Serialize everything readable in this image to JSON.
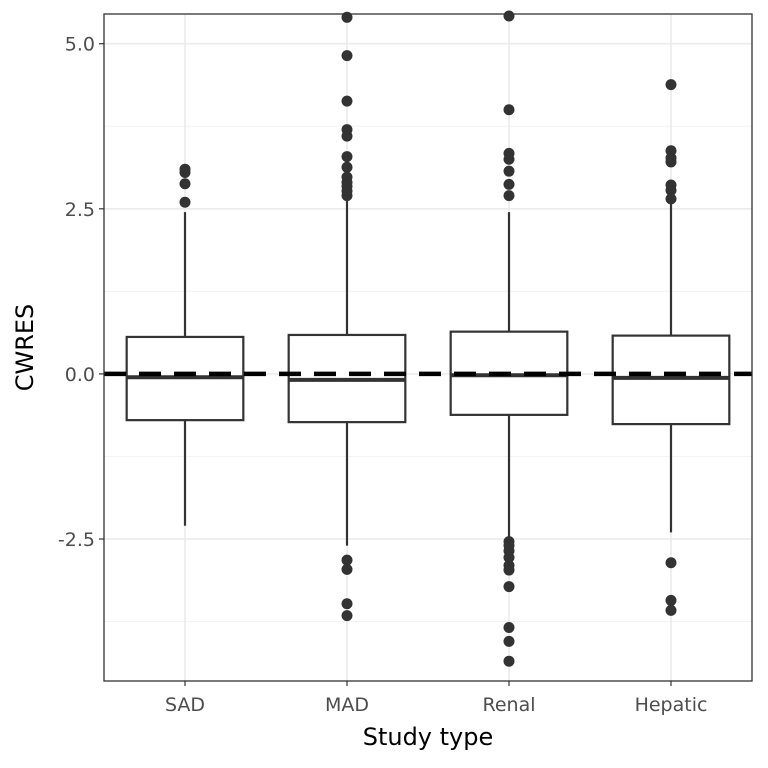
{
  "chart_data": {
    "type": "box",
    "xlabel": "Study type",
    "ylabel": "CWRES",
    "ylim": [
      -4.65,
      5.45
    ],
    "yticks": [
      -2.5,
      0.0,
      2.5,
      5.0
    ],
    "ytick_labels": [
      "-2.5",
      "0.0",
      "2.5",
      "5.0"
    ],
    "grid": true,
    "reference_line": {
      "y": 0,
      "style": "dashed"
    },
    "categories": [
      "SAD",
      "MAD",
      "Renal",
      "Hepatic"
    ],
    "boxes": [
      {
        "category": "SAD",
        "q1": -0.7,
        "median": -0.05,
        "q3": 0.56,
        "whisker_low": -2.3,
        "whisker_high": 2.45,
        "outliers": [
          3.1,
          3.05,
          2.88,
          2.6
        ]
      },
      {
        "category": "MAD",
        "q1": -0.73,
        "median": -0.09,
        "q3": 0.59,
        "whisker_low": -2.6,
        "whisker_high": 2.62,
        "outliers": [
          5.4,
          4.82,
          4.13,
          3.7,
          3.6,
          3.29,
          3.13,
          2.98,
          2.9,
          2.84,
          2.77,
          2.7,
          -2.82,
          -2.96,
          -3.48,
          -3.66
        ]
      },
      {
        "category": "Renal",
        "q1": -0.62,
        "median": -0.02,
        "q3": 0.64,
        "whisker_low": -2.5,
        "whisker_high": 2.45,
        "outliers": [
          5.42,
          4.0,
          3.34,
          3.25,
          3.07,
          2.87,
          2.7,
          -2.54,
          -2.6,
          -2.68,
          -2.78,
          -2.9,
          -2.97,
          -3.22,
          -3.84,
          -4.05,
          -4.35
        ]
      },
      {
        "category": "Hepatic",
        "q1": -0.76,
        "median": -0.06,
        "q3": 0.58,
        "whisker_low": -2.4,
        "whisker_high": 2.62,
        "outliers": [
          4.38,
          3.38,
          3.27,
          3.21,
          2.86,
          2.78,
          2.65,
          -2.86,
          -3.43,
          -3.58
        ]
      }
    ],
    "colors": {
      "box_stroke": "#333333",
      "outlier": "#333333",
      "reference": "#000000",
      "grid_major": "#ebebeb",
      "grid_minor": "#f3f3f3",
      "panel_border": "#333333"
    }
  }
}
